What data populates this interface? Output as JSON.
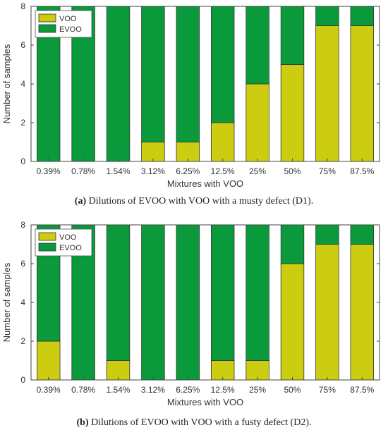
{
  "colors": {
    "voo": "#CCCC11",
    "evoo": "#0A9A3C",
    "axis": "#444444",
    "text": "#333333"
  },
  "chart_data": [
    {
      "type": "bar",
      "stacked": true,
      "xlabel": "Mixtures with VOO",
      "ylabel": "Number of samples",
      "ylim": [
        0,
        8
      ],
      "yticks": [
        0,
        2,
        4,
        6,
        8
      ],
      "legend_position": "top-left",
      "categories": [
        "0.39%",
        "0.78%",
        "1.54%",
        "3.12%",
        "6.25%",
        "12.5%",
        "25%",
        "50%",
        "75%",
        "87.5%"
      ],
      "series": [
        {
          "name": "VOO",
          "values": [
            0,
            0,
            0,
            1,
            1,
            2,
            4,
            5,
            7,
            7
          ]
        },
        {
          "name": "EVOO",
          "values": [
            8,
            8,
            8,
            7,
            7,
            6,
            4,
            3,
            1,
            1
          ]
        }
      ],
      "caption_label": "(a)",
      "caption_text": "Dilutions of EVOO with VOO with a musty defect (D1)."
    },
    {
      "type": "bar",
      "stacked": true,
      "xlabel": "Mixtures with VOO",
      "ylabel": "Number of samples",
      "ylim": [
        0,
        8
      ],
      "yticks": [
        0,
        2,
        4,
        6,
        8
      ],
      "legend_position": "top-left",
      "categories": [
        "0.39%",
        "0.78%",
        "1.54%",
        "3.12%",
        "6.25%",
        "12.5%",
        "25%",
        "50%",
        "75%",
        "87.5%"
      ],
      "series": [
        {
          "name": "VOO",
          "values": [
            2,
            0,
            1,
            0,
            0,
            1,
            1,
            6,
            7,
            7
          ]
        },
        {
          "name": "EVOO",
          "values": [
            6,
            8,
            7,
            8,
            8,
            7,
            7,
            2,
            1,
            1
          ]
        }
      ],
      "caption_label": "(b)",
      "caption_text": "Dilutions of EVOO with VOO with a fusty defect (D2)."
    }
  ]
}
